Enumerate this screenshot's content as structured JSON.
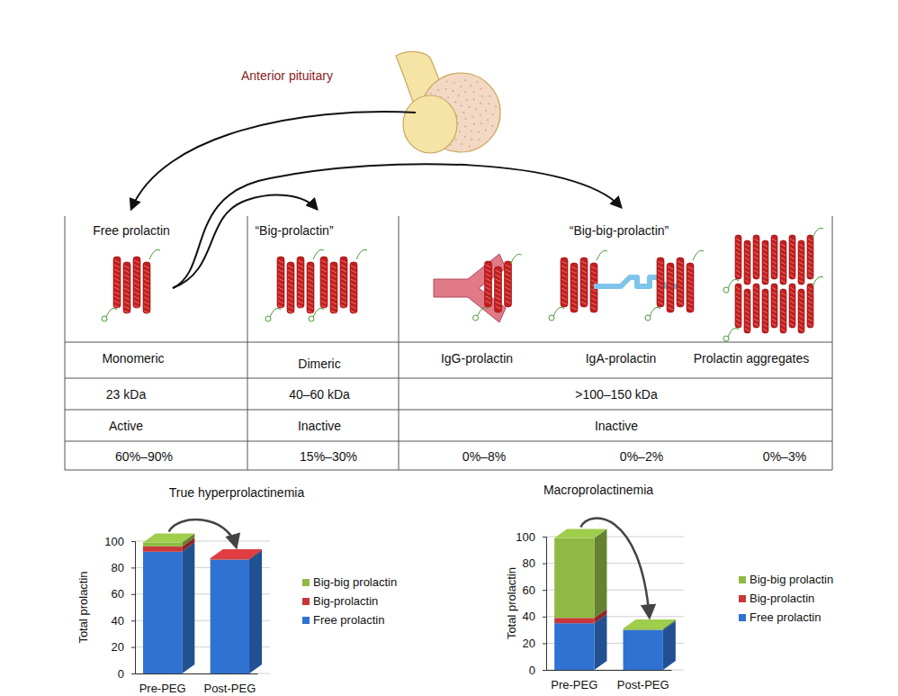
{
  "diagram": {
    "source": "Anterior pituitary",
    "table": {
      "groups": [
        {
          "header": "Free prolactin",
          "forms": [
            "Monomeric"
          ],
          "size": "23 kDa",
          "activity": "Active",
          "shares": [
            "60%–90%"
          ]
        },
        {
          "header": "“Big-prolactin”",
          "forms": [
            "Dimeric"
          ],
          "size": "40–60 kDa",
          "activity": "Inactive",
          "shares": [
            "15%–30%"
          ]
        },
        {
          "header": "“Big-big-prolactin”",
          "forms": [
            "IgG-prolactin",
            "IgA-prolactin",
            "Prolactin aggregates"
          ],
          "size": ">100–150 kDa",
          "activity": "Inactive",
          "shares": [
            "0%–8%",
            "0%–2%",
            "0%–3%"
          ]
        }
      ]
    }
  },
  "chart_data": [
    {
      "type": "bar",
      "stacked": true,
      "title": "True hyperprolactinemia",
      "ylabel": "Total prolactin",
      "categories": [
        "Pre-PEG",
        "Post-PEG"
      ],
      "series": [
        {
          "name": "Free prolactin",
          "color": "#2f72d2",
          "values": [
            92,
            86
          ]
        },
        {
          "name": "Big-prolactin",
          "color": "#c8373a",
          "values": [
            4,
            1
          ]
        },
        {
          "name": "Big-big prolactin",
          "color": "#8fb944",
          "values": [
            3,
            0
          ]
        }
      ],
      "ylim": [
        0,
        100
      ],
      "yticks": [
        0,
        20,
        40,
        60,
        80,
        100
      ],
      "grid": true,
      "legend": "right"
    },
    {
      "type": "bar",
      "stacked": true,
      "title": "Macroprolactinemia",
      "ylabel": "Total prolactin",
      "categories": [
        "Pre-PEG",
        "Post-PEG"
      ],
      "series": [
        {
          "name": "Free prolactin",
          "color": "#2f72d2",
          "values": [
            35,
            30
          ]
        },
        {
          "name": "Big-prolactin",
          "color": "#c8373a",
          "values": [
            4,
            0
          ]
        },
        {
          "name": "Big-big prolactin",
          "color": "#8fb944",
          "values": [
            60,
            1
          ]
        }
      ],
      "ylim": [
        0,
        100
      ],
      "yticks": [
        0,
        20,
        40,
        60,
        80,
        100
      ],
      "grid": true,
      "legend": "right"
    }
  ]
}
